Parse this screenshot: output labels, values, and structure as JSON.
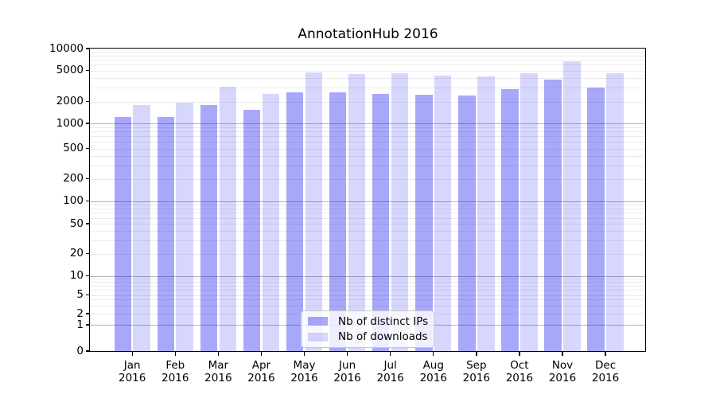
{
  "chart_data": {
    "type": "bar",
    "title": "AnnotationHub 2016",
    "categories": [
      "Jan",
      "Feb",
      "Mar",
      "Apr",
      "May",
      "Jun",
      "Jul",
      "Aug",
      "Sep",
      "Oct",
      "Nov",
      "Dec"
    ],
    "category_sub_label": "2016",
    "series": [
      {
        "name": "Nb of distinct IPs",
        "base_color": "#0505f0",
        "alpha": 0.35,
        "blended_hex": "#a8a8f9",
        "values": [
          1230,
          1230,
          1800,
          1550,
          2600,
          2600,
          2500,
          2450,
          2400,
          2900,
          3800,
          3000
        ]
      },
      {
        "name": "Nb of downloads",
        "base_color": "#0505f0",
        "alpha": 0.16,
        "blended_hex": "#d8d8fc",
        "values": [
          1790,
          1950,
          3100,
          2500,
          4700,
          4450,
          4600,
          4300,
          4150,
          4650,
          6700,
          4600
        ]
      }
    ],
    "y_axis": {
      "scale": "log-like",
      "tick_values": [
        0,
        1,
        2,
        5,
        10,
        20,
        50,
        100,
        200,
        500,
        1000,
        2000,
        5000,
        10000
      ],
      "tick_labels": [
        "0",
        "1",
        "2",
        "5",
        "10",
        "20",
        "50",
        "100",
        "200",
        "500",
        "1000",
        "2000",
        "5000",
        "10000"
      ],
      "range": [
        0,
        10000
      ]
    },
    "grid": {
      "horizontal_only": true,
      "major_color": "#b4b4b4",
      "minor_color": "#ebebeb"
    },
    "legend": {
      "position": "lower center",
      "entries": [
        "Nb of distinct IPs",
        "Nb of downloads"
      ]
    }
  }
}
